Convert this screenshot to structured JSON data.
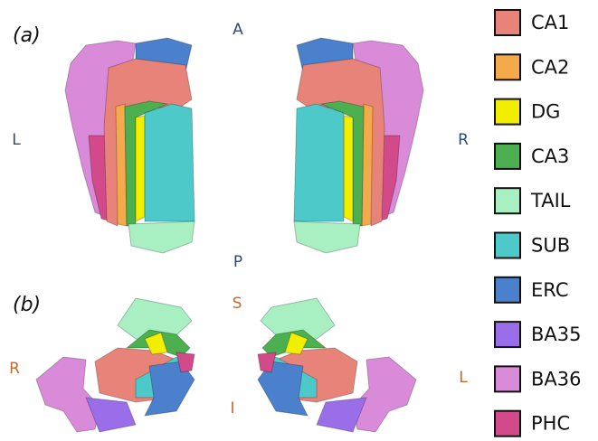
{
  "panels": [
    {
      "label": "(a)",
      "orientation": {
        "top": "A",
        "left": "L",
        "right": "R",
        "bottom": "P"
      }
    },
    {
      "label": "(b)",
      "orientation": {
        "top": "S",
        "left": "R",
        "right": "L",
        "bottom": "I"
      }
    }
  ],
  "legend": [
    {
      "name": "CA1",
      "color": "#e8837a"
    },
    {
      "name": "CA2",
      "color": "#f4a94a"
    },
    {
      "name": "DG",
      "color": "#f2ee00"
    },
    {
      "name": "CA3",
      "color": "#4caf50"
    },
    {
      "name": "TAIL",
      "color": "#a8f0c2"
    },
    {
      "name": "SUB",
      "color": "#4ec9c9"
    },
    {
      "name": "ERC",
      "color": "#4a80cc"
    },
    {
      "name": "BA35",
      "color": "#9a6ee8"
    },
    {
      "name": "BA36",
      "color": "#d98ad9"
    },
    {
      "name": "PHC",
      "color": "#d24a8a"
    }
  ]
}
